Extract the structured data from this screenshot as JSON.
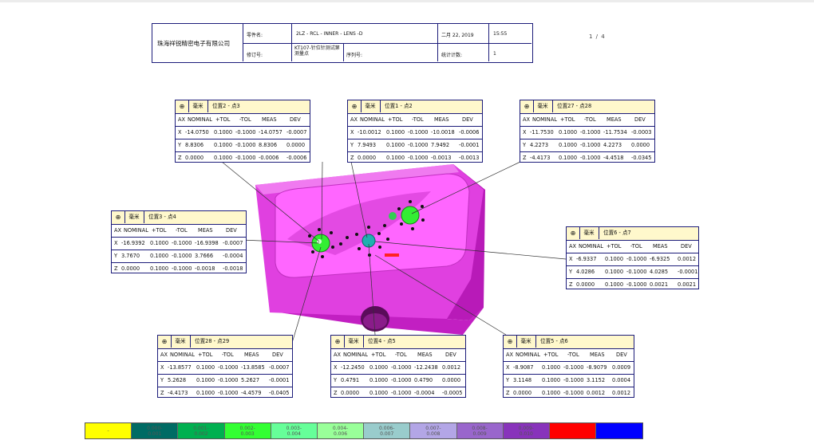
{
  "header": {
    "company": "珠海祥锐精密电子有限公司",
    "part_name_label": "零件名:",
    "part_name": "2LZ - RCL - INNER - LENS -D",
    "date": "二月 22, 2019",
    "time": "15:55",
    "revision_label": "修订号:",
    "revision_value": "KT107-针位针测试第测量点",
    "serial_label": "序列号:",
    "stat_label": "统计计数:",
    "stat_value": "1"
  },
  "page_indicator": "1 / 4",
  "columns": {
    "ax": "AX",
    "nominal": "NOMINAL",
    "ptol": "+TOL",
    "mtol": "-TOL",
    "meas": "MEAS",
    "dev": "DEV"
  },
  "unit": "毫米",
  "boxes": [
    {
      "symbol": "⊕",
      "feature": "位置2 - 点3",
      "rows": [
        {
          "ax": "X",
          "nominal": "-14.0750",
          "ptol": "0.1000",
          "mtol": "-0.1000",
          "meas": "-14.0757",
          "dev": "-0.0007"
        },
        {
          "ax": "Y",
          "nominal": "8.8306",
          "ptol": "0.1000",
          "mtol": "-0.1000",
          "meas": "8.8306",
          "dev": "0.0000"
        },
        {
          "ax": "Z",
          "nominal": "0.0000",
          "ptol": "0.1000",
          "mtol": "-0.1000",
          "meas": "-0.0006",
          "dev": "-0.0006"
        }
      ]
    },
    {
      "symbol": "⊕",
      "feature": "位置1 - 点2",
      "rows": [
        {
          "ax": "X",
          "nominal": "-10.0012",
          "ptol": "0.1000",
          "mtol": "-0.1000",
          "meas": "-10.0018",
          "dev": "-0.0006"
        },
        {
          "ax": "Y",
          "nominal": "7.9493",
          "ptol": "0.1000",
          "mtol": "-0.1000",
          "meas": "7.9492",
          "dev": "-0.0001"
        },
        {
          "ax": "Z",
          "nominal": "0.0000",
          "ptol": "0.1000",
          "mtol": "-0.1000",
          "meas": "-0.0013",
          "dev": "-0.0013"
        }
      ]
    },
    {
      "symbol": "⊕",
      "feature": "位置27 - 点28",
      "rows": [
        {
          "ax": "X",
          "nominal": "-11.7530",
          "ptol": "0.1000",
          "mtol": "-0.1000",
          "meas": "-11.7534",
          "dev": "-0.0003"
        },
        {
          "ax": "Y",
          "nominal": "4.2273",
          "ptol": "0.1000",
          "mtol": "-0.1000",
          "meas": "4.2273",
          "dev": "0.0000"
        },
        {
          "ax": "Z",
          "nominal": "-4.4173",
          "ptol": "0.1000",
          "mtol": "-0.1000",
          "meas": "-4.4518",
          "dev": "-0.0345"
        }
      ]
    },
    {
      "symbol": "⊕",
      "feature": "位置3 - 点4",
      "rows": [
        {
          "ax": "X",
          "nominal": "-16.9392",
          "ptol": "0.1000",
          "mtol": "-0.1000",
          "meas": "-16.9398",
          "dev": "-0.0007"
        },
        {
          "ax": "Y",
          "nominal": "3.7670",
          "ptol": "0.1000",
          "mtol": "-0.1000",
          "meas": "3.7666",
          "dev": "-0.0004"
        },
        {
          "ax": "Z",
          "nominal": "0.0000",
          "ptol": "0.1000",
          "mtol": "-0.1000",
          "meas": "-0.0018",
          "dev": "-0.0018"
        }
      ]
    },
    {
      "symbol": "⊕",
      "feature": "位置6 - 点7",
      "rows": [
        {
          "ax": "X",
          "nominal": "-6.9337",
          "ptol": "0.1000",
          "mtol": "-0.1000",
          "meas": "-6.9325",
          "dev": "0.0012"
        },
        {
          "ax": "Y",
          "nominal": "4.0286",
          "ptol": "0.1000",
          "mtol": "-0.1000",
          "meas": "4.0285",
          "dev": "-0.0001"
        },
        {
          "ax": "Z",
          "nominal": "0.0000",
          "ptol": "0.1000",
          "mtol": "-0.1000",
          "meas": "0.0021",
          "dev": "0.0021"
        }
      ]
    },
    {
      "symbol": "⊕",
      "feature": "位置28 - 点29",
      "rows": [
        {
          "ax": "X",
          "nominal": "-13.8577",
          "ptol": "0.1000",
          "mtol": "-0.1000",
          "meas": "-13.8585",
          "dev": "-0.0007"
        },
        {
          "ax": "Y",
          "nominal": "5.2628",
          "ptol": "0.1000",
          "mtol": "-0.1000",
          "meas": "5.2627",
          "dev": "-0.0001"
        },
        {
          "ax": "Z",
          "nominal": "-4.4173",
          "ptol": "0.1000",
          "mtol": "-0.1000",
          "meas": "-4.4579",
          "dev": "-0.0405"
        }
      ]
    },
    {
      "symbol": "⊕",
      "feature": "位置4 - 点5",
      "rows": [
        {
          "ax": "X",
          "nominal": "-12.2450",
          "ptol": "0.1000",
          "mtol": "-0.1000",
          "meas": "-12.2438",
          "dev": "0.0012"
        },
        {
          "ax": "Y",
          "nominal": "0.4791",
          "ptol": "0.1000",
          "mtol": "-0.1000",
          "meas": "0.4790",
          "dev": "0.0000"
        },
        {
          "ax": "Z",
          "nominal": "0.0000",
          "ptol": "0.1000",
          "mtol": "-0.1000",
          "meas": "-0.0004",
          "dev": "-0.0005"
        }
      ]
    },
    {
      "symbol": "⊕",
      "feature": "位置5 - 点6",
      "rows": [
        {
          "ax": "X",
          "nominal": "-8.9087",
          "ptol": "0.1000",
          "mtol": "-0.1000",
          "meas": "-8.9079",
          "dev": "0.0009"
        },
        {
          "ax": "Y",
          "nominal": "3.1148",
          "ptol": "0.1000",
          "mtol": "-0.1000",
          "meas": "3.1152",
          "dev": "0.0004"
        },
        {
          "ax": "Z",
          "nominal": "0.0000",
          "ptol": "0.1000",
          "mtol": "-0.1000",
          "meas": "0.0012",
          "dev": "0.0012"
        }
      ]
    }
  ],
  "legend": [
    {
      "label": "-",
      "color": "#ffff00"
    },
    {
      "label": "0.000-\n0.001",
      "color": "#006b64"
    },
    {
      "label": "0.001-\n0.002",
      "color": "#00b050"
    },
    {
      "label": "0.002-\n0.003",
      "color": "#33ff33"
    },
    {
      "label": "0.003-\n0.004",
      "color": "#66ff99"
    },
    {
      "label": "0.004-\n0.006",
      "color": "#99ff99"
    },
    {
      "label": "0.006-\n0.007",
      "color": "#99cccc"
    },
    {
      "label": "0.007-\n0.008",
      "color": "#b3a6e6"
    },
    {
      "label": "0.008-\n0.009",
      "color": "#9966cc"
    },
    {
      "label": "0.009-\n0.010",
      "color": "#8833bb"
    },
    {
      "label": "",
      "color": "#ff0000"
    },
    {
      "label": "",
      "color": "#0000ff"
    }
  ]
}
